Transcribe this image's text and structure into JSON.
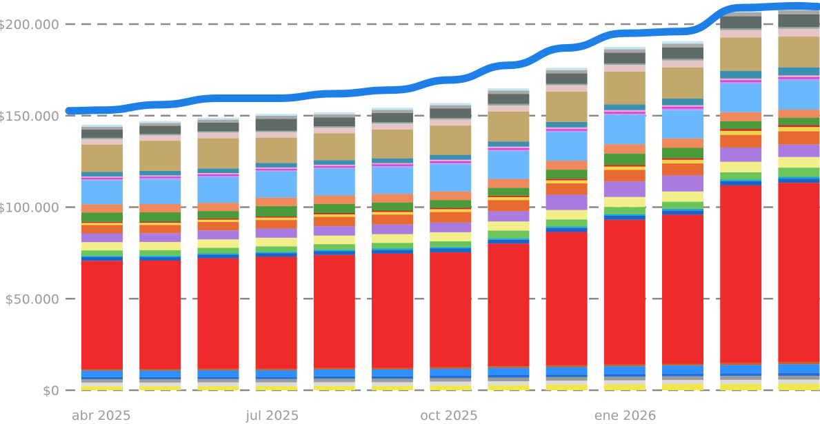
{
  "chart_data": {
    "type": "bar",
    "stacked": true,
    "x": [
      "2025-04",
      "2025-05",
      "2025-06",
      "2025-07",
      "2025-08",
      "2025-09",
      "2025-10",
      "2025-11",
      "2025-12",
      "2026-01",
      "2026-02",
      "2026-03",
      "2026-04"
    ],
    "x_tick_labels": [
      {
        "index": 0,
        "label": "abr 2025"
      },
      {
        "index": 3,
        "label": "jul 2025"
      },
      {
        "index": 6,
        "label": "oct 2025"
      },
      {
        "index": 9,
        "label": "ene 2026"
      }
    ],
    "y_tick_labels": [
      "$0",
      "$50.000",
      "$100.000",
      "$150.000",
      "$200.000"
    ],
    "y_ticks": [
      0,
      50000,
      100000,
      150000,
      200000
    ],
    "ylim": [
      0,
      210000
    ],
    "grid": "horizontal-dashed",
    "series": [
      {
        "color": "#f0e84a",
        "values": [
          2200,
          2200,
          2300,
          2300,
          2400,
          2400,
          2600,
          2800,
          3000,
          3200,
          3400,
          3500,
          3600
        ]
      },
      {
        "color": "#dcdcdc",
        "values": [
          2000,
          2000,
          2000,
          2000,
          2000,
          2000,
          2100,
          2100,
          2200,
          2200,
          2200,
          2200,
          2200
        ]
      },
      {
        "color": "#9b9b9b",
        "values": [
          1800,
          1800,
          1800,
          1800,
          1900,
          1900,
          1900,
          2000,
          2000,
          2000,
          2000,
          2100,
          2100
        ]
      },
      {
        "color": "#1f6fd6",
        "values": [
          1200,
          1200,
          1200,
          1200,
          1300,
          1300,
          1300,
          1400,
          1400,
          1500,
          1500,
          1500,
          1600
        ]
      },
      {
        "color": "#2f8fff",
        "values": [
          3500,
          3500,
          3600,
          3600,
          3700,
          3700,
          3800,
          3900,
          4000,
          4200,
          4400,
          4500,
          4700
        ]
      },
      {
        "color": "#c4632a",
        "values": [
          800,
          800,
          800,
          800,
          900,
          900,
          900,
          900,
          1000,
          1000,
          1000,
          1100,
          1100
        ]
      },
      {
        "color": "#ee2a2a",
        "values": [
          59200,
          59300,
          60400,
          61200,
          61700,
          62400,
          62700,
          67000,
          72800,
          79000,
          81400,
          97000,
          98000
        ]
      },
      {
        "color": "#1e64c8",
        "values": [
          2000,
          2000,
          2000,
          2000,
          2000,
          2000,
          2100,
          2100,
          2200,
          2200,
          2300,
          2300,
          2300
        ]
      },
      {
        "color": "#18a6d6",
        "values": [
          700,
          700,
          700,
          700,
          800,
          800,
          800,
          800,
          900,
          900,
          900,
          900,
          1000
        ]
      },
      {
        "color": "#6cc55a",
        "values": [
          3000,
          3000,
          3000,
          3000,
          3100,
          3100,
          3200,
          4200,
          3800,
          3900,
          3900,
          4000,
          5000
        ]
      },
      {
        "color": "#f2ee8a",
        "values": [
          4500,
          4500,
          4600,
          4700,
          4700,
          4800,
          4900,
          5000,
          5200,
          5500,
          5600,
          5700,
          5800
        ]
      },
      {
        "color": "#a97be0",
        "values": [
          4800,
          4800,
          4900,
          5000,
          5100,
          5200,
          5300,
          5600,
          8300,
          8500,
          8700,
          7800,
          6800
        ]
      },
      {
        "color": "#e86a33",
        "values": [
          4500,
          4500,
          4600,
          4700,
          5100,
          5500,
          5800,
          6100,
          6200,
          6300,
          6600,
          6900,
          7300
        ]
      },
      {
        "color": "#f3d34a",
        "values": [
          1200,
          1200,
          1300,
          1300,
          1400,
          1400,
          1500,
          1600,
          1700,
          1800,
          2000,
          2200,
          2300
        ]
      },
      {
        "color": "#d02525",
        "values": [
          600,
          600,
          600,
          600,
          700,
          700,
          700,
          800,
          800,
          900,
          900,
          1000,
          1000
        ]
      },
      {
        "color": "#4b9a3c",
        "values": [
          5100,
          5100,
          4100,
          5700,
          5000,
          4500,
          4300,
          4300,
          5000,
          6200,
          5600,
          4300,
          4100
        ]
      },
      {
        "color": "#f08a5d",
        "values": [
          4500,
          4500,
          4500,
          4600,
          4600,
          4700,
          4700,
          4800,
          4900,
          5100,
          5200,
          4900,
          4400
        ]
      },
      {
        "color": "#6cb8ff",
        "values": [
          13000,
          13500,
          14000,
          14300,
          14500,
          14500,
          14800,
          15100,
          15500,
          15800,
          15200,
          15500,
          15800
        ]
      },
      {
        "color": "#b89ce6",
        "values": [
          700,
          700,
          700,
          700,
          800,
          800,
          800,
          900,
          900,
          900,
          1000,
          1000,
          1000
        ]
      },
      {
        "color": "#d43be0",
        "values": [
          800,
          800,
          800,
          800,
          800,
          800,
          900,
          900,
          900,
          1000,
          1000,
          1000,
          1000
        ]
      },
      {
        "color": "#f0a8c8",
        "values": [
          700,
          700,
          700,
          700,
          700,
          700,
          800,
          800,
          900,
          900,
          900,
          900,
          900
        ]
      },
      {
        "color": "#3b8fb0",
        "values": [
          2400,
          2400,
          2500,
          2500,
          2500,
          2600,
          2700,
          2800,
          3000,
          3200,
          3600,
          4200,
          4400
        ]
      },
      {
        "color": "#c2a86c",
        "values": [
          15000,
          16500,
          16600,
          13800,
          14600,
          15800,
          16000,
          16300,
          16500,
          17800,
          17000,
          18200,
          16800
        ]
      },
      {
        "color": "#e6c5c5",
        "values": [
          3000,
          3000,
          3100,
          3100,
          3200,
          3200,
          3300,
          3400,
          3500,
          3700,
          3900,
          4100,
          4300
        ]
      },
      {
        "color": "#8aa6a0",
        "values": [
          700,
          700,
          700,
          700,
          700,
          700,
          800,
          800,
          800,
          800,
          900,
          900,
          900
        ]
      },
      {
        "color": "#606a66",
        "values": [
          4500,
          4500,
          4700,
          6500,
          4900,
          5100,
          5300,
          5500,
          5700,
          5900,
          6200,
          6600,
          7000
        ]
      },
      {
        "color": "#a8a8a8",
        "values": [
          1500,
          1500,
          1600,
          1600,
          1600,
          1700,
          1700,
          1800,
          1800,
          1900,
          2000,
          2100,
          2200
        ]
      },
      {
        "color": "#c6e6f4",
        "values": [
          1100,
          1100,
          1100,
          1100,
          1100,
          1200,
          1200,
          1200,
          1300,
          1300,
          1400,
          1400,
          1500
        ]
      }
    ],
    "line_series": {
      "color": "#1e7fe6",
      "values": [
        153000,
        156000,
        159500,
        159500,
        162000,
        164000,
        169500,
        177500,
        187000,
        195000,
        196000,
        209000,
        210000
      ]
    }
  }
}
